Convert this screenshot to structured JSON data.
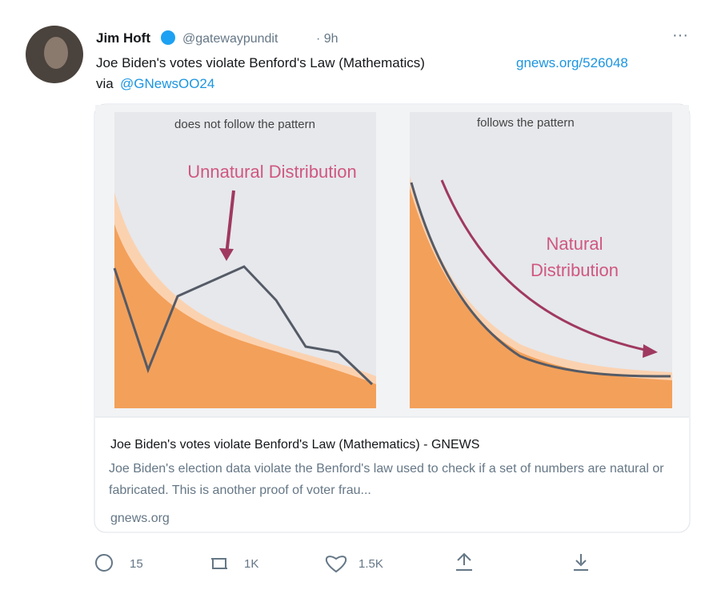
{
  "tweet": {
    "author": {
      "name": "Jim Hoft",
      "handle": "@gatewaypundit",
      "time": "· 9h"
    },
    "text": "Joe Biden's votes violate Benford's Law (Mathematics)",
    "link": "gnews.org/526048",
    "via": "via",
    "mention": "@GNewsOO24",
    "image": {
      "left_caption": "does not follow the pattern",
      "right_caption": "follows the pattern",
      "left_label": "Unnatural Distribution",
      "right_label_line1": "Natural",
      "right_label_line2": "Distribution"
    },
    "card": {
      "title": "Joe Biden's votes violate Benford's Law (Mathematics) - GNEWS",
      "description": "Joe Biden's election data violate the Benford's law used to check if a set of numbers are natural or fabricated. This is another proof of voter frau...",
      "domain": "gnews.org"
    },
    "actions": {
      "replies": "15",
      "retweets": "1K",
      "likes": "1.5K"
    }
  }
}
